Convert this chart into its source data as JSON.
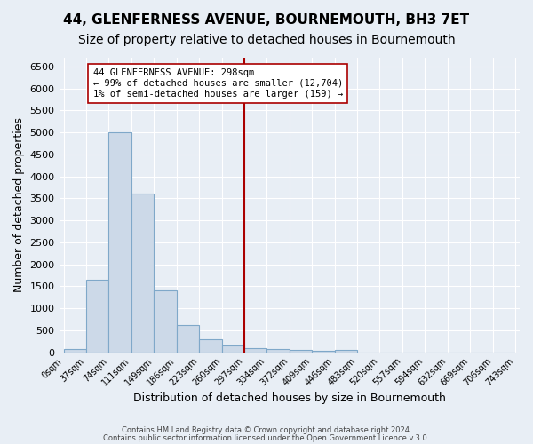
{
  "title": "44, GLENFERNESS AVENUE, BOURNEMOUTH, BH3 7ET",
  "subtitle": "Size of property relative to detached houses in Bournemouth",
  "xlabel": "Distribution of detached houses by size in Bournemouth",
  "ylabel": "Number of detached properties",
  "footer_lines": [
    "Contains HM Land Registry data © Crown copyright and database right 2024.",
    "Contains public sector information licensed under the Open Government Licence v.3.0."
  ],
  "bin_labels": [
    "0sqm",
    "37sqm",
    "74sqm",
    "111sqm",
    "149sqm",
    "186sqm",
    "223sqm",
    "260sqm",
    "297sqm",
    "334sqm",
    "372sqm",
    "409sqm",
    "446sqm",
    "483sqm",
    "520sqm",
    "557sqm",
    "594sqm",
    "632sqm",
    "669sqm",
    "706sqm",
    "743sqm"
  ],
  "bar_heights": [
    75,
    1650,
    5000,
    3600,
    1400,
    620,
    300,
    160,
    100,
    75,
    50,
    35,
    50,
    0,
    0,
    0,
    0,
    0,
    0,
    0
  ],
  "bar_color": "#ccd9e8",
  "bar_edge_color": "#7fa8c9",
  "vline_x": 8,
  "vline_color": "#aa0000",
  "annotation_text": "44 GLENFERNESS AVENUE: 298sqm\n← 99% of detached houses are smaller (12,704)\n1% of semi-detached houses are larger (159) →",
  "annotation_box_color": "#ffffff",
  "annotation_box_edge": "#aa0000",
  "ylim": [
    0,
    6700
  ],
  "yticks": [
    0,
    500,
    1000,
    1500,
    2000,
    2500,
    3000,
    3500,
    4000,
    4500,
    5000,
    5500,
    6000,
    6500
  ],
  "background_color": "#e8eef5",
  "grid_color": "#ffffff",
  "title_fontsize": 11,
  "subtitle_fontsize": 10,
  "xlabel_fontsize": 9,
  "ylabel_fontsize": 9
}
